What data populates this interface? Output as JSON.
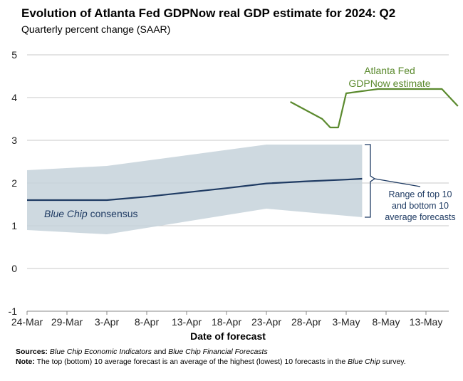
{
  "header": {
    "title": "Evolution of Atlanta Fed GDPNow real GDP estimate for 2024: Q2",
    "subtitle": "Quarterly percent change (SAAR)"
  },
  "chart_data": {
    "type": "line",
    "title": "Evolution of Atlanta Fed GDPNow real GDP estimate for 2024: Q2",
    "subtitle": "Quarterly percent change (SAAR)",
    "xlabel": "Date of forecast",
    "ylabel": "",
    "ylim": [
      -1,
      5
    ],
    "yticks": [
      "-1",
      "0",
      "1",
      "2",
      "3",
      "4",
      "5"
    ],
    "xticks": [
      "24-Mar",
      "29-Mar",
      "3-Apr",
      "8-Apr",
      "13-Apr",
      "18-Apr",
      "23-Apr",
      "28-Apr",
      "3-May",
      "8-May",
      "13-May"
    ],
    "grid": true,
    "series": [
      {
        "name": "Atlanta Fed GDPNow estimate",
        "color": "#5b8a2e",
        "x": [
          "2024-04-26",
          "2024-04-30",
          "2024-05-01",
          "2024-05-02",
          "2024-05-03",
          "2024-05-07",
          "2024-05-09",
          "2024-05-15",
          "2024-05-17"
        ],
        "values": [
          3.9,
          3.5,
          3.3,
          3.3,
          4.1,
          4.2,
          4.2,
          4.2,
          3.8
        ]
      },
      {
        "name": "Blue Chip consensus",
        "color": "#1f3b63",
        "x": [
          "2024-03-24",
          "2024-04-03",
          "2024-04-08",
          "2024-04-13",
          "2024-04-18",
          "2024-04-23",
          "2024-04-28",
          "2024-05-03",
          "2024-05-05"
        ],
        "values": [
          1.6,
          1.6,
          1.68,
          1.78,
          1.88,
          1.99,
          2.04,
          2.08,
          2.1
        ]
      }
    ],
    "range_band": {
      "name": "Range of top 10 and bottom 10 average forecasts",
      "color": "#c5d2db",
      "x": [
        "2024-03-24",
        "2024-04-03",
        "2024-04-23",
        "2024-05-05"
      ],
      "upper": [
        2.3,
        2.4,
        2.9,
        2.9
      ],
      "lower": [
        0.9,
        0.8,
        1.4,
        1.2
      ]
    },
    "annotations": {
      "gdpnow_label": [
        "Atlanta Fed",
        "GDPNow estimate"
      ],
      "consensus_label_italic": "Blue Chip",
      "consensus_label_rest": " consensus",
      "range_label": [
        "Range of top 10",
        "and bottom 10",
        "average forecasts"
      ]
    }
  },
  "notes": {
    "sources_label": "Sources:",
    "sources_italic_1": "Blue Chip Economic Indicators",
    "sources_mid": " and ",
    "sources_italic_2": "Blue Chip Financial Forecasts",
    "note_label": "Note:",
    "note_text_1": " The top (bottom) 10 average forecast is an average of the highest (lowest) 10 forecasts in the ",
    "note_italic": "Blue Chip",
    "note_text_2": " survey."
  }
}
